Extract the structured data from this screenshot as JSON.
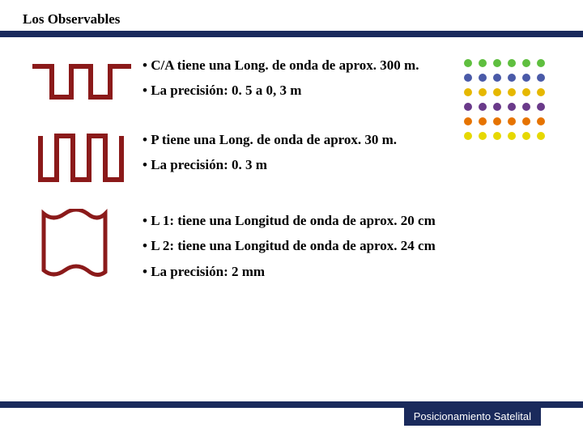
{
  "title": "Los Observables",
  "footer": "Posicionamiento Satelital",
  "colors": {
    "title_bar": "#1a2a5c",
    "icon_stroke": "#8b1a1a",
    "text": "#000000",
    "footer_bg": "#1a2a5c",
    "footer_text": "#ffffff",
    "background": "#ffffff"
  },
  "dots_grid": {
    "rows": 6,
    "cols": 6,
    "spacing": 18,
    "radius": 5,
    "row_colors": [
      "#5fbf3f",
      "#4a5aa8",
      "#e6b800",
      "#6a3a8a",
      "#e67300",
      "#e6d800"
    ]
  },
  "sections": [
    {
      "icon": "square-wave-wide",
      "bullets": [
        "C/A tiene una Long. de onda de aprox. 300 m.",
        "La precisión:  0. 5 a 0, 3 m"
      ]
    },
    {
      "icon": "square-wave-narrow",
      "bullets": [
        "P  tiene una Long. de onda de aprox. 30 m.",
        "La precisión: 0. 3 m"
      ]
    },
    {
      "icon": "sine-wave",
      "bullets": [
        "L 1: tiene una Longitud de onda de aprox. 20 cm",
        "L 2: tiene una Longitud de onda de aprox. 24 cm",
        "La precisión: 2 mm"
      ]
    }
  ]
}
